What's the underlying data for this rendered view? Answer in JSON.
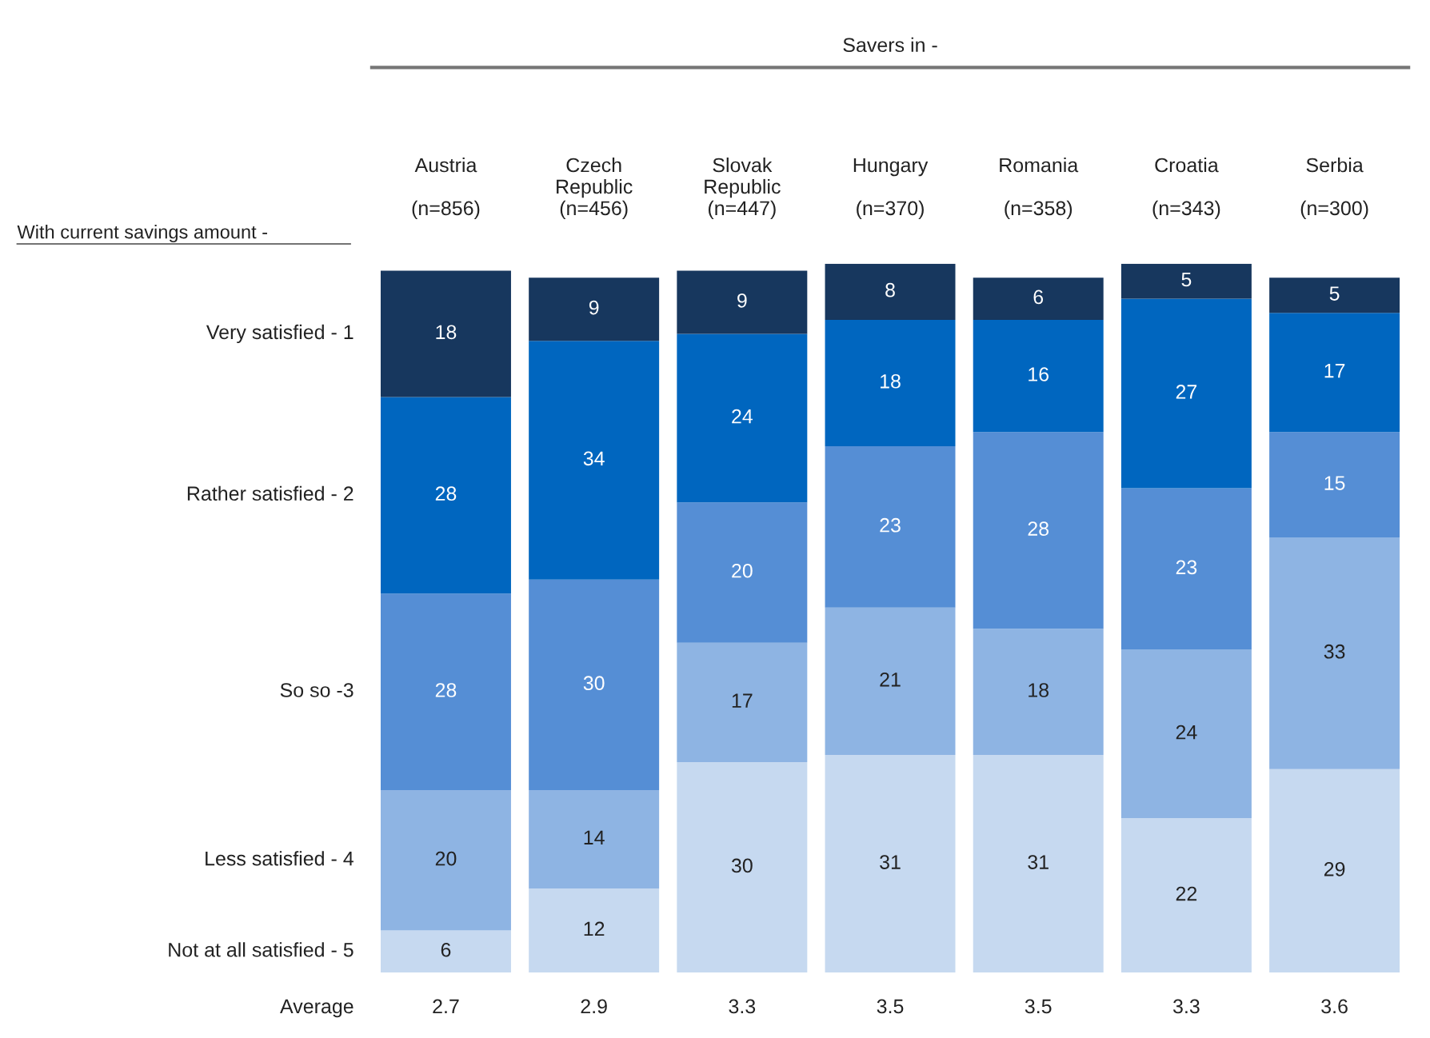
{
  "chart_data": {
    "type": "bar",
    "stacked": true,
    "data_labels": true,
    "legend_title": "With current savings amount -",
    "categories": [
      "Austria\n\n(n=856)",
      "Czech\nRepublic\n(n=456)",
      "Slovak\nRepublic\n(n=447)",
      "Hungary\n\n(n=370)",
      "Romania\n\n(n=358)",
      "Croatia\n\n(n=343)",
      "Serbia\n\n(n=300)"
    ],
    "series": [
      {
        "name": "Not at all satisfied - 5",
        "color": "#c6d9f0",
        "values": [
          6,
          12,
          30,
          31,
          31,
          22,
          29
        ]
      },
      {
        "name": "Less satisfied - 4",
        "color": "#8eb4e3",
        "values": [
          20,
          14,
          17,
          21,
          18,
          24,
          33
        ]
      },
      {
        "name": "So so -3",
        "color": "#558ed5",
        "values": [
          28,
          30,
          20,
          23,
          28,
          23,
          15
        ]
      },
      {
        "name": "Rather satisfied - 2",
        "color": "#0066bf",
        "values": [
          28,
          34,
          24,
          18,
          16,
          27,
          17
        ]
      },
      {
        "name": "Very satisfied - 1",
        "color": "#17375e",
        "values": [
          18,
          9,
          9,
          8,
          6,
          5,
          5
        ]
      }
    ],
    "annotations": [
      "Savers in -",
      "Average",
      "2.7",
      "2.9",
      "3.3",
      "3.5",
      "3.5",
      "3.3",
      "3.6"
    ]
  }
}
